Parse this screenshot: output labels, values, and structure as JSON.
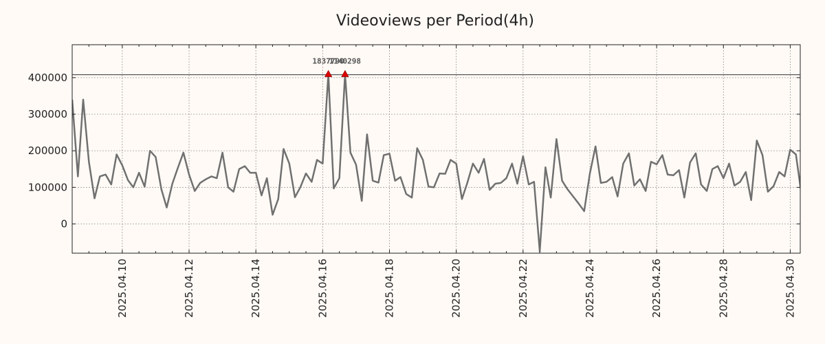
{
  "chart_data": {
    "type": "line",
    "title": "Videoviews per Period(4h)",
    "xlabel": "",
    "ylabel": "",
    "ylim": [
      -80000,
      490000
    ],
    "yticks": [
      0,
      100000,
      200000,
      300000,
      400000
    ],
    "ytick_labels": [
      "0",
      "100000",
      "200000",
      "300000",
      "400000"
    ],
    "xlim_days": [
      8.5,
      30.3
    ],
    "xticks": [
      {
        "day": 10,
        "label": "2025.04.10"
      },
      {
        "day": 12,
        "label": "2025.04.12"
      },
      {
        "day": 14,
        "label": "2025.04.14"
      },
      {
        "day": 16,
        "label": "2025.04.16"
      },
      {
        "day": 18,
        "label": "2025.04.18"
      },
      {
        "day": 20,
        "label": "2025.04.20"
      },
      {
        "day": 22,
        "label": "2025.04.22"
      },
      {
        "day": 24,
        "label": "2025.04.24"
      },
      {
        "day": 26,
        "label": "2025.04.26"
      },
      {
        "day": 28,
        "label": "2025.04.28"
      },
      {
        "day": 30,
        "label": "2025.04.30"
      }
    ],
    "grid": true,
    "series": [
      {
        "color": "#707070",
        "values": [
          [
            8.5,
            340000
          ],
          [
            8.67,
            130000
          ],
          [
            8.83,
            340000
          ],
          [
            9.0,
            170000
          ],
          [
            9.17,
            70000
          ],
          [
            9.33,
            130000
          ],
          [
            9.5,
            135000
          ],
          [
            9.67,
            108000
          ],
          [
            9.83,
            190000
          ],
          [
            10.0,
            160000
          ],
          [
            10.17,
            120000
          ],
          [
            10.33,
            100000
          ],
          [
            10.5,
            140000
          ],
          [
            10.67,
            102000
          ],
          [
            10.83,
            200000
          ],
          [
            11.0,
            183000
          ],
          [
            11.17,
            95000
          ],
          [
            11.33,
            45000
          ],
          [
            11.5,
            110000
          ],
          [
            11.67,
            155000
          ],
          [
            11.83,
            195000
          ],
          [
            12.0,
            135000
          ],
          [
            12.17,
            90000
          ],
          [
            12.33,
            112000
          ],
          [
            12.5,
            122000
          ],
          [
            12.67,
            130000
          ],
          [
            12.83,
            125000
          ],
          [
            13.0,
            195000
          ],
          [
            13.17,
            100000
          ],
          [
            13.33,
            88000
          ],
          [
            13.5,
            150000
          ],
          [
            13.67,
            158000
          ],
          [
            13.83,
            140000
          ],
          [
            14.0,
            140000
          ],
          [
            14.17,
            78000
          ],
          [
            14.33,
            125000
          ],
          [
            14.5,
            25000
          ],
          [
            14.67,
            68000
          ],
          [
            14.83,
            205000
          ],
          [
            15.0,
            165000
          ],
          [
            15.17,
            73000
          ],
          [
            15.33,
            100000
          ],
          [
            15.5,
            138000
          ],
          [
            15.67,
            115000
          ],
          [
            15.83,
            175000
          ],
          [
            16.0,
            165000
          ],
          [
            16.17,
            410000
          ],
          [
            16.33,
            97000
          ],
          [
            16.5,
            125000
          ],
          [
            16.67,
            410000
          ],
          [
            16.83,
            195000
          ],
          [
            17.0,
            162000
          ],
          [
            17.17,
            63000
          ],
          [
            17.33,
            245000
          ],
          [
            17.5,
            118000
          ],
          [
            17.67,
            113000
          ],
          [
            17.83,
            188000
          ],
          [
            18.0,
            192000
          ],
          [
            18.17,
            118000
          ],
          [
            18.33,
            128000
          ],
          [
            18.5,
            82000
          ],
          [
            18.67,
            72000
          ],
          [
            18.83,
            207000
          ],
          [
            19.0,
            175000
          ],
          [
            19.17,
            102000
          ],
          [
            19.33,
            100000
          ],
          [
            19.5,
            138000
          ],
          [
            19.67,
            137000
          ],
          [
            19.83,
            175000
          ],
          [
            20.0,
            165000
          ],
          [
            20.17,
            68000
          ],
          [
            20.33,
            112000
          ],
          [
            20.5,
            165000
          ],
          [
            20.67,
            140000
          ],
          [
            20.83,
            178000
          ],
          [
            21.0,
            93000
          ],
          [
            21.17,
            110000
          ],
          [
            21.33,
            112000
          ],
          [
            21.5,
            125000
          ],
          [
            21.67,
            165000
          ],
          [
            21.83,
            110000
          ],
          [
            22.0,
            185000
          ],
          [
            22.17,
            108000
          ],
          [
            22.33,
            115000
          ],
          [
            22.5,
            -75000
          ],
          [
            22.67,
            155000
          ],
          [
            22.83,
            72000
          ],
          [
            23.0,
            232000
          ],
          [
            23.17,
            118000
          ],
          [
            23.33,
            95000
          ],
          [
            23.5,
            75000
          ],
          [
            23.67,
            55000
          ],
          [
            23.83,
            35000
          ],
          [
            24.0,
            138000
          ],
          [
            24.17,
            212000
          ],
          [
            24.33,
            112000
          ],
          [
            24.5,
            115000
          ],
          [
            24.67,
            128000
          ],
          [
            24.83,
            75000
          ],
          [
            25.0,
            165000
          ],
          [
            25.17,
            193000
          ],
          [
            25.33,
            105000
          ],
          [
            25.5,
            122000
          ],
          [
            25.67,
            90000
          ],
          [
            25.83,
            170000
          ],
          [
            26.0,
            163000
          ],
          [
            26.17,
            188000
          ],
          [
            26.33,
            135000
          ],
          [
            26.5,
            133000
          ],
          [
            26.67,
            147000
          ],
          [
            26.83,
            72000
          ],
          [
            27.0,
            168000
          ],
          [
            27.17,
            193000
          ],
          [
            27.33,
            108000
          ],
          [
            27.5,
            90000
          ],
          [
            27.67,
            150000
          ],
          [
            27.83,
            158000
          ],
          [
            28.0,
            125000
          ],
          [
            28.17,
            165000
          ],
          [
            28.33,
            105000
          ],
          [
            28.5,
            115000
          ],
          [
            28.67,
            142000
          ],
          [
            28.83,
            65000
          ],
          [
            29.0,
            228000
          ],
          [
            29.17,
            188000
          ],
          [
            29.33,
            88000
          ],
          [
            29.5,
            103000
          ],
          [
            29.67,
            142000
          ],
          [
            29.83,
            130000
          ],
          [
            30.0,
            203000
          ],
          [
            30.17,
            190000
          ],
          [
            30.33,
            85000
          ],
          [
            30.5,
            135000
          ]
        ]
      }
    ],
    "reference_line": 408000,
    "peaks": [
      {
        "day": 16.17,
        "value": 410000,
        "label": "1837790"
      },
      {
        "day": 16.67,
        "value": 410000,
        "label": "1140298"
      }
    ]
  }
}
